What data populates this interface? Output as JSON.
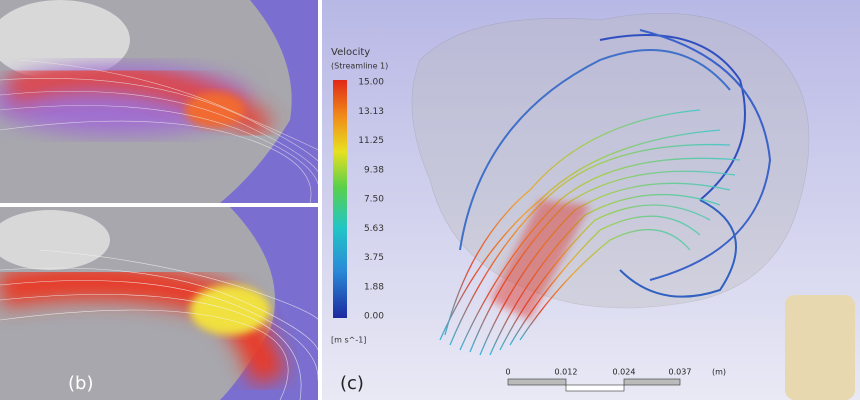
{
  "panels": {
    "b": {
      "label": "(b)"
    },
    "c": {
      "label": "(c)"
    }
  },
  "legend": {
    "title": "Velocity",
    "subtitle": "(Streamline 1)",
    "unit": "[m s^-1]",
    "ticks": [
      "15.00",
      "13.13",
      "11.25",
      "9.38",
      "7.50",
      "5.63",
      "3.75",
      "1.88",
      "0.00"
    ]
  },
  "scale_bar": {
    "ticks": [
      "0",
      "0.012",
      "0.024",
      "0.037"
    ],
    "unit": "(m)"
  }
}
